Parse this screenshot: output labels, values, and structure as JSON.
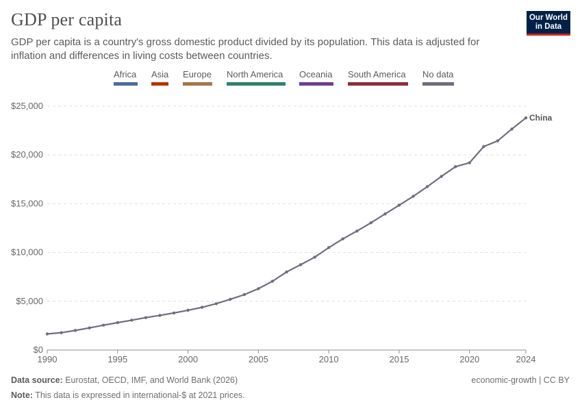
{
  "title": "GDP per capita",
  "subtitle": "GDP per capita is a country's gross domestic product divided by its population. This data is adjusted for inflation and differences in living costs between countries.",
  "logo": {
    "line1": "Our World",
    "line2": "in Data"
  },
  "legend": [
    {
      "label": "Africa",
      "color": "#4c6a9c"
    },
    {
      "label": "Asia",
      "color": "#b13507"
    },
    {
      "label": "Europe",
      "color": "#a2744e"
    },
    {
      "label": "North America",
      "color": "#2c8465"
    },
    {
      "label": "Oceania",
      "color": "#6d3e91"
    },
    {
      "label": "South America",
      "color": "#883039"
    },
    {
      "label": "No data",
      "color": "#6d6e7b"
    }
  ],
  "footer": {
    "source_label": "Data source:",
    "source_text": "Eurostat, OECD, IMF, and World Bank (2026)",
    "note_label": "Note:",
    "note_text": "This data is expressed in international-$ at 2021 prices.",
    "license": "economic-growth | CC BY"
  },
  "chart_data": {
    "type": "line",
    "title": "GDP per capita",
    "xlabel": "",
    "ylabel": "",
    "xlim": [
      1990,
      2024
    ],
    "ylim": [
      0,
      25000
    ],
    "x_ticks": [
      1990,
      1995,
      2000,
      2005,
      2010,
      2015,
      2020,
      2024
    ],
    "y_ticks": [
      0,
      5000,
      10000,
      15000,
      20000,
      25000
    ],
    "y_tick_labels": [
      "$0",
      "$5,000",
      "$10,000",
      "$15,000",
      "$20,000",
      "$25,000"
    ],
    "grid": "horizontal dashed",
    "series": [
      {
        "name": "China",
        "color": "#6d6e7b",
        "x": [
          1990,
          1991,
          1992,
          1993,
          1994,
          1995,
          1996,
          1997,
          1998,
          1999,
          2000,
          2001,
          2002,
          2003,
          2004,
          2005,
          2006,
          2007,
          2008,
          2009,
          2010,
          2011,
          2012,
          2013,
          2014,
          2015,
          2016,
          2017,
          2018,
          2019,
          2020,
          2021,
          2022,
          2023,
          2024
        ],
        "y": [
          1650,
          1780,
          2010,
          2270,
          2550,
          2810,
          3060,
          3320,
          3550,
          3800,
          4080,
          4380,
          4750,
          5200,
          5680,
          6290,
          7050,
          8000,
          8750,
          9520,
          10500,
          11400,
          12200,
          13050,
          13950,
          14850,
          15760,
          16750,
          17800,
          18800,
          19200,
          20850,
          21450,
          22650,
          23800
        ]
      }
    ]
  }
}
